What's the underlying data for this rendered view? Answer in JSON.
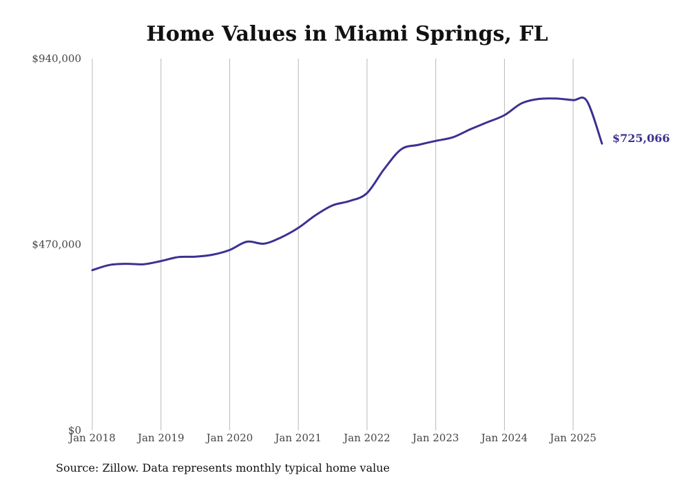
{
  "chart_data": {
    "type": "line",
    "title": "Home Values in Miami Springs, FL",
    "source": "Source: Zillow. Data represents monthly typical home value",
    "ylim": [
      0,
      940000
    ],
    "y_ticks": [
      "$0",
      "$470,000",
      "$940,000"
    ],
    "y_tick_values": [
      0,
      470000,
      940000
    ],
    "x_ticks": [
      "Jan 2018",
      "Jan 2019",
      "Jan 2020",
      "Jan 2021",
      "Jan 2022",
      "Jan 2023",
      "Jan 2024",
      "Jan 2025"
    ],
    "x_tick_values": [
      2018.0,
      2019.0,
      2020.0,
      2021.0,
      2022.0,
      2023.0,
      2024.0,
      2025.0
    ],
    "xlim": [
      2018.0,
      2025.42
    ],
    "grid": "vertical",
    "line_color": "#3b3191",
    "end_label": "$725,066",
    "series": [
      {
        "x": [
          2018.0,
          2018.25,
          2018.5,
          2018.75,
          2019.0,
          2019.25,
          2019.5,
          2019.75,
          2020.0,
          2020.25,
          2020.5,
          2020.75,
          2021.0,
          2021.25,
          2021.5,
          2021.75,
          2022.0,
          2022.25,
          2022.5,
          2022.75,
          2023.0,
          2023.25,
          2023.5,
          2023.75,
          2024.0,
          2024.25,
          2024.5,
          2024.75,
          2025.0,
          2025.2,
          2025.42
        ],
        "y": [
          405000,
          418000,
          421000,
          420000,
          428000,
          438000,
          439000,
          444000,
          456000,
          477000,
          472000,
          488000,
          512000,
          544000,
          569000,
          580000,
          600000,
          661000,
          711000,
          722000,
          732000,
          741000,
          761000,
          779000,
          797000,
          827000,
          838000,
          839000,
          835000,
          833000,
          725066
        ]
      }
    ]
  }
}
